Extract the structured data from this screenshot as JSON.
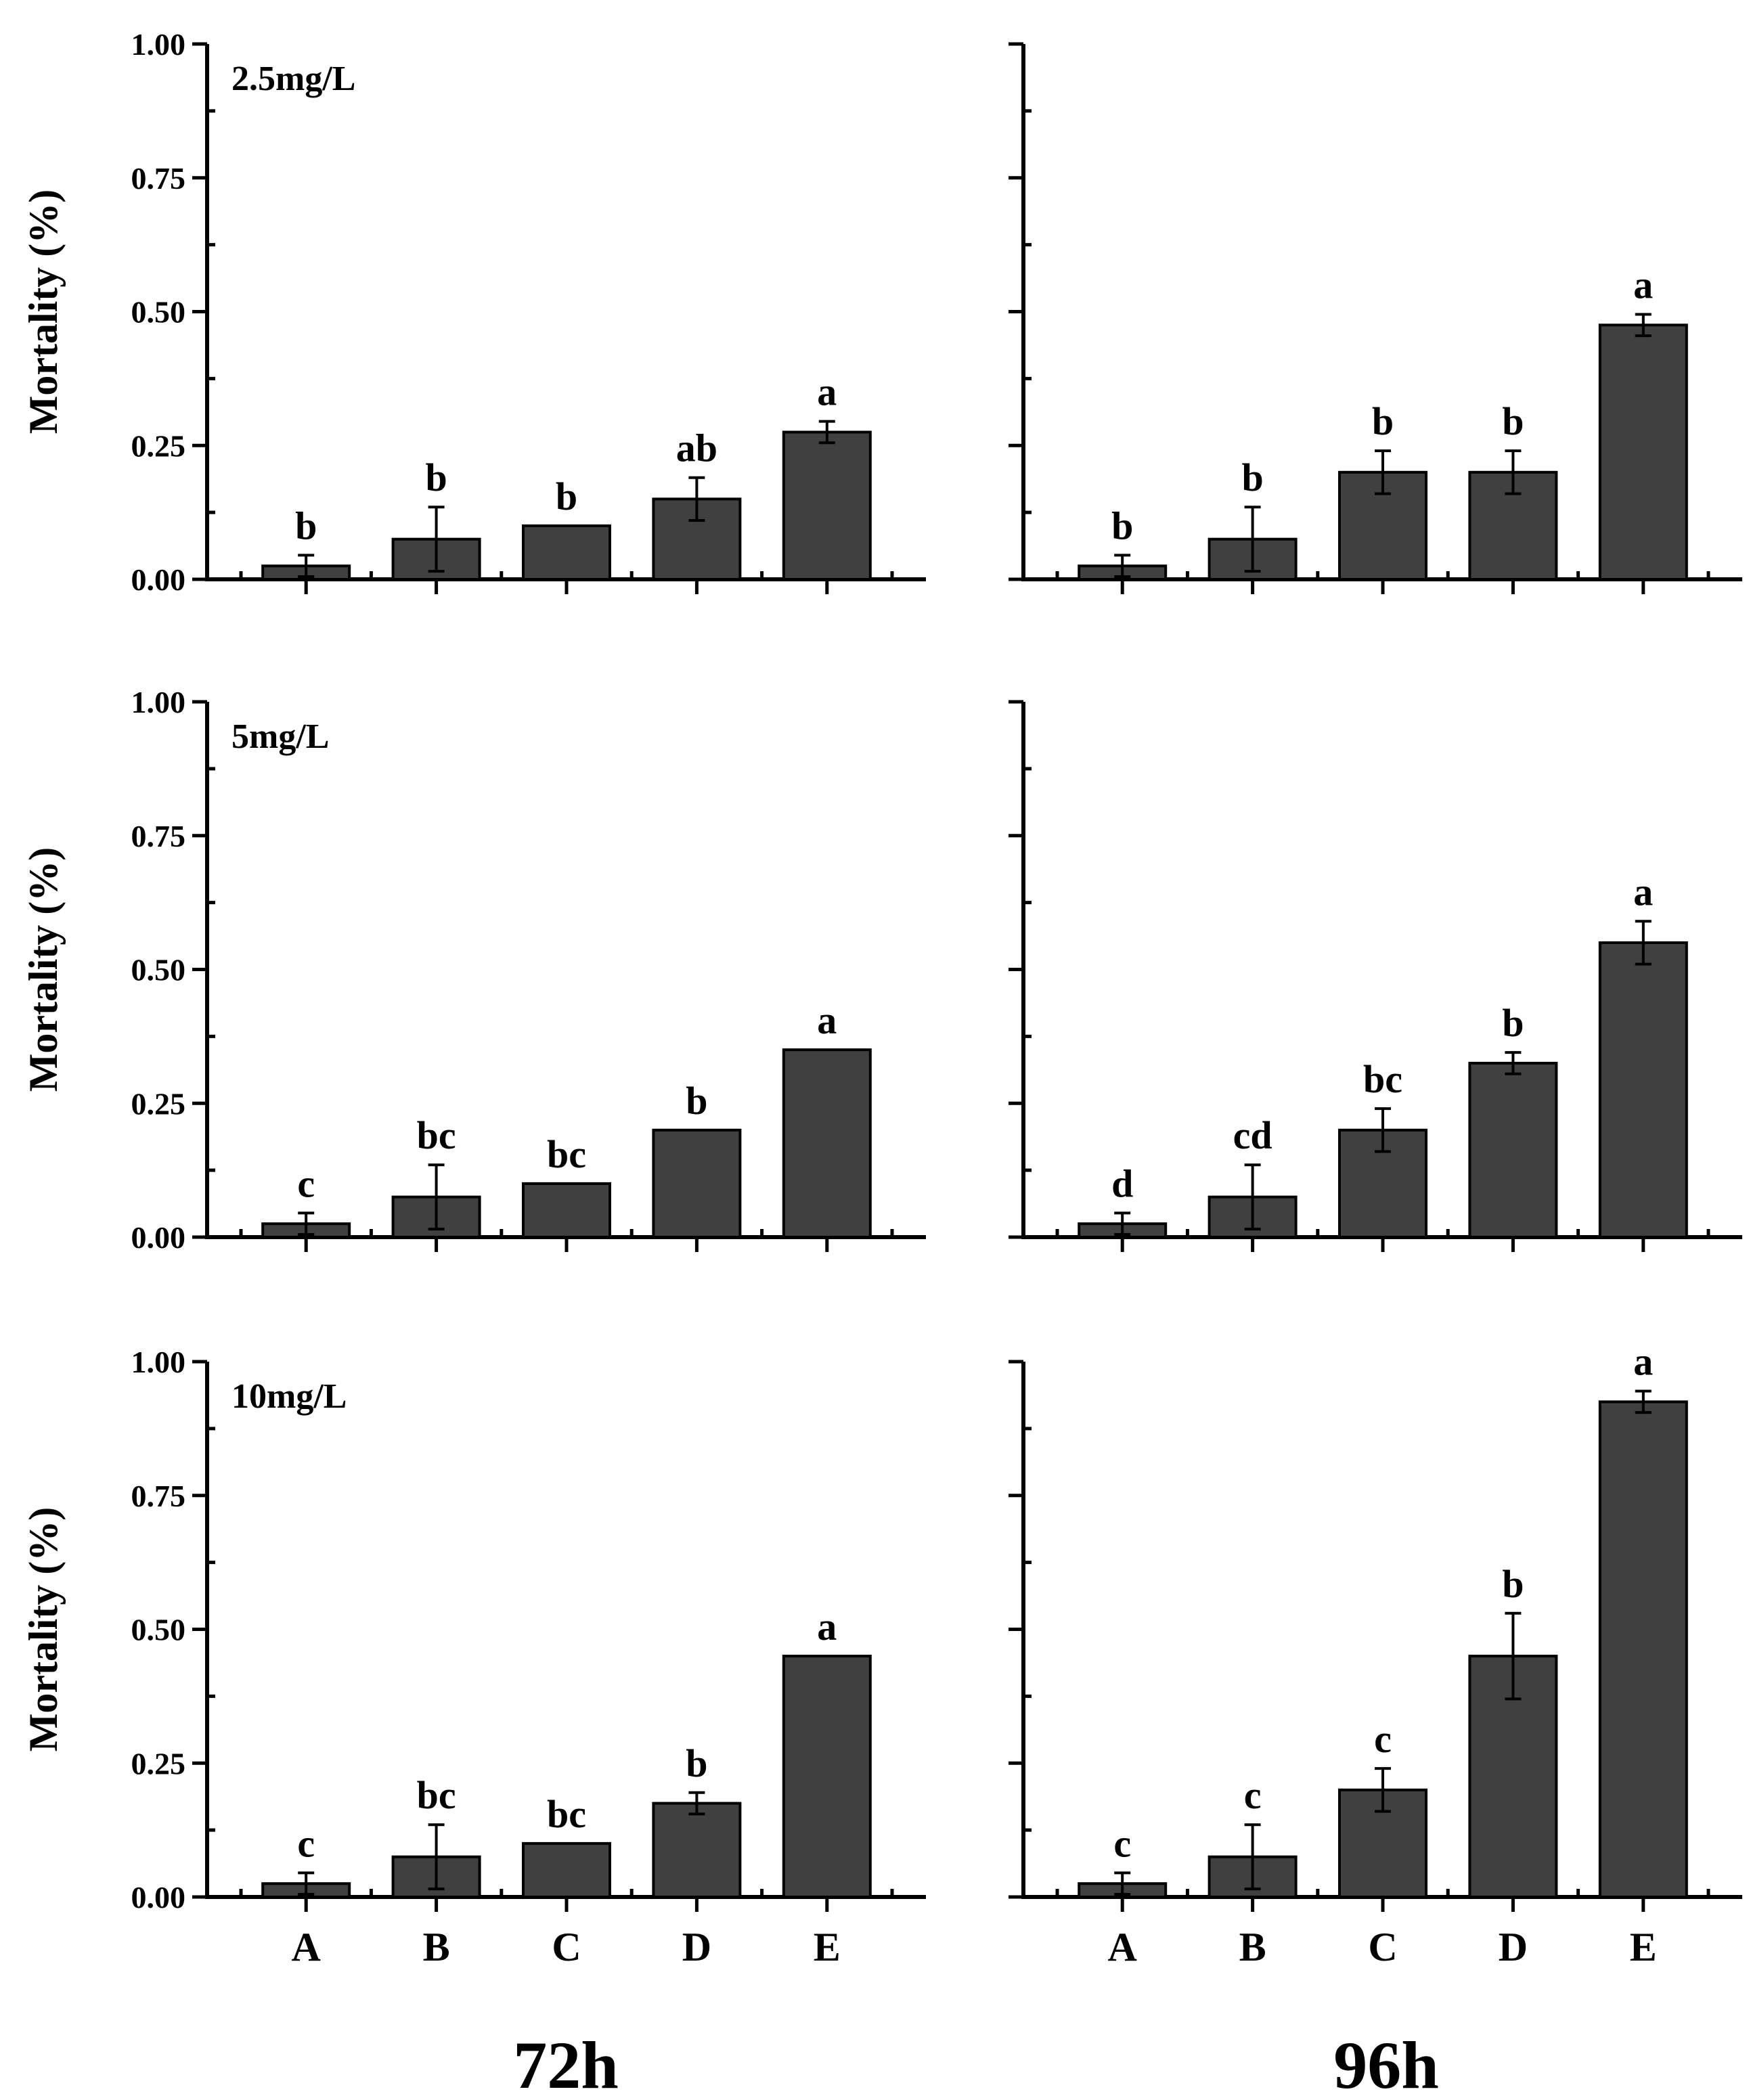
{
  "chart_data": [
    {
      "type": "bar",
      "panel": "2.5mg/L, 72h",
      "label": "2.5mg/L",
      "time": "72h",
      "ylabel": "Mortality (%)",
      "ylim": [
        0,
        1.0
      ],
      "yticks": [
        "0.00",
        "0.25",
        "0.50",
        "0.75",
        "1.00"
      ],
      "categories": [
        "A",
        "B",
        "C",
        "D",
        "E"
      ],
      "values": [
        0.025,
        0.075,
        0.1,
        0.15,
        0.275
      ],
      "errors": [
        0.02,
        0.06,
        0.0,
        0.04,
        0.02
      ],
      "letters": [
        "b",
        "b",
        "b",
        "ab",
        "a"
      ]
    },
    {
      "type": "bar",
      "panel": "2.5mg/L, 96h",
      "label": "",
      "time": "96h",
      "ylabel": "",
      "ylim": [
        0,
        1.0
      ],
      "yticks": [],
      "categories": [
        "A",
        "B",
        "C",
        "D",
        "E"
      ],
      "values": [
        0.025,
        0.075,
        0.2,
        0.2,
        0.475
      ],
      "errors": [
        0.02,
        0.06,
        0.04,
        0.04,
        0.02
      ],
      "letters": [
        "b",
        "b",
        "b",
        "b",
        "a"
      ]
    },
    {
      "type": "bar",
      "panel": "5mg/L, 72h",
      "label": "5mg/L",
      "time": "72h",
      "ylabel": "Mortality (%)",
      "ylim": [
        0,
        1.0
      ],
      "yticks": [
        "0.00",
        "0.25",
        "0.50",
        "0.75",
        "1.00"
      ],
      "categories": [
        "A",
        "B",
        "C",
        "D",
        "E"
      ],
      "values": [
        0.025,
        0.075,
        0.1,
        0.2,
        0.35
      ],
      "errors": [
        0.02,
        0.06,
        0.0,
        0.0,
        0.0
      ],
      "letters": [
        "c",
        "bc",
        "bc",
        "b",
        "a"
      ]
    },
    {
      "type": "bar",
      "panel": "5mg/L, 96h",
      "label": "",
      "time": "96h",
      "ylabel": "",
      "ylim": [
        0,
        1.0
      ],
      "yticks": [],
      "categories": [
        "A",
        "B",
        "C",
        "D",
        "E"
      ],
      "values": [
        0.025,
        0.075,
        0.2,
        0.325,
        0.55
      ],
      "errors": [
        0.02,
        0.06,
        0.04,
        0.02,
        0.04
      ],
      "letters": [
        "d",
        "cd",
        "bc",
        "b",
        "a"
      ]
    },
    {
      "type": "bar",
      "panel": "10mg/L, 72h",
      "label": "10mg/L",
      "time": "72h",
      "ylabel": "Mortality (%)",
      "ylim": [
        0,
        1.0
      ],
      "yticks": [
        "0.00",
        "0.25",
        "0.50",
        "0.75",
        "1.00"
      ],
      "categories": [
        "A",
        "B",
        "C",
        "D",
        "E"
      ],
      "values": [
        0.025,
        0.075,
        0.1,
        0.175,
        0.45
      ],
      "errors": [
        0.02,
        0.06,
        0.0,
        0.02,
        0.0
      ],
      "letters": [
        "c",
        "bc",
        "bc",
        "b",
        "a"
      ]
    },
    {
      "type": "bar",
      "panel": "10mg/L, 96h",
      "label": "",
      "time": "96h",
      "ylabel": "",
      "ylim": [
        0,
        1.0
      ],
      "yticks": [],
      "categories": [
        "A",
        "B",
        "C",
        "D",
        "E"
      ],
      "values": [
        0.025,
        0.075,
        0.2,
        0.45,
        0.925
      ],
      "errors": [
        0.02,
        0.06,
        0.04,
        0.08,
        0.02
      ],
      "letters": [
        "c",
        "c",
        "c",
        "b",
        "a"
      ]
    }
  ],
  "x_categories": [
    "A",
    "B",
    "C",
    "D",
    "E"
  ],
  "column_titles": [
    "72h",
    "96h"
  ],
  "colors": {
    "bar": "#404040",
    "axis": "#000000",
    "background": "#ffffff"
  }
}
